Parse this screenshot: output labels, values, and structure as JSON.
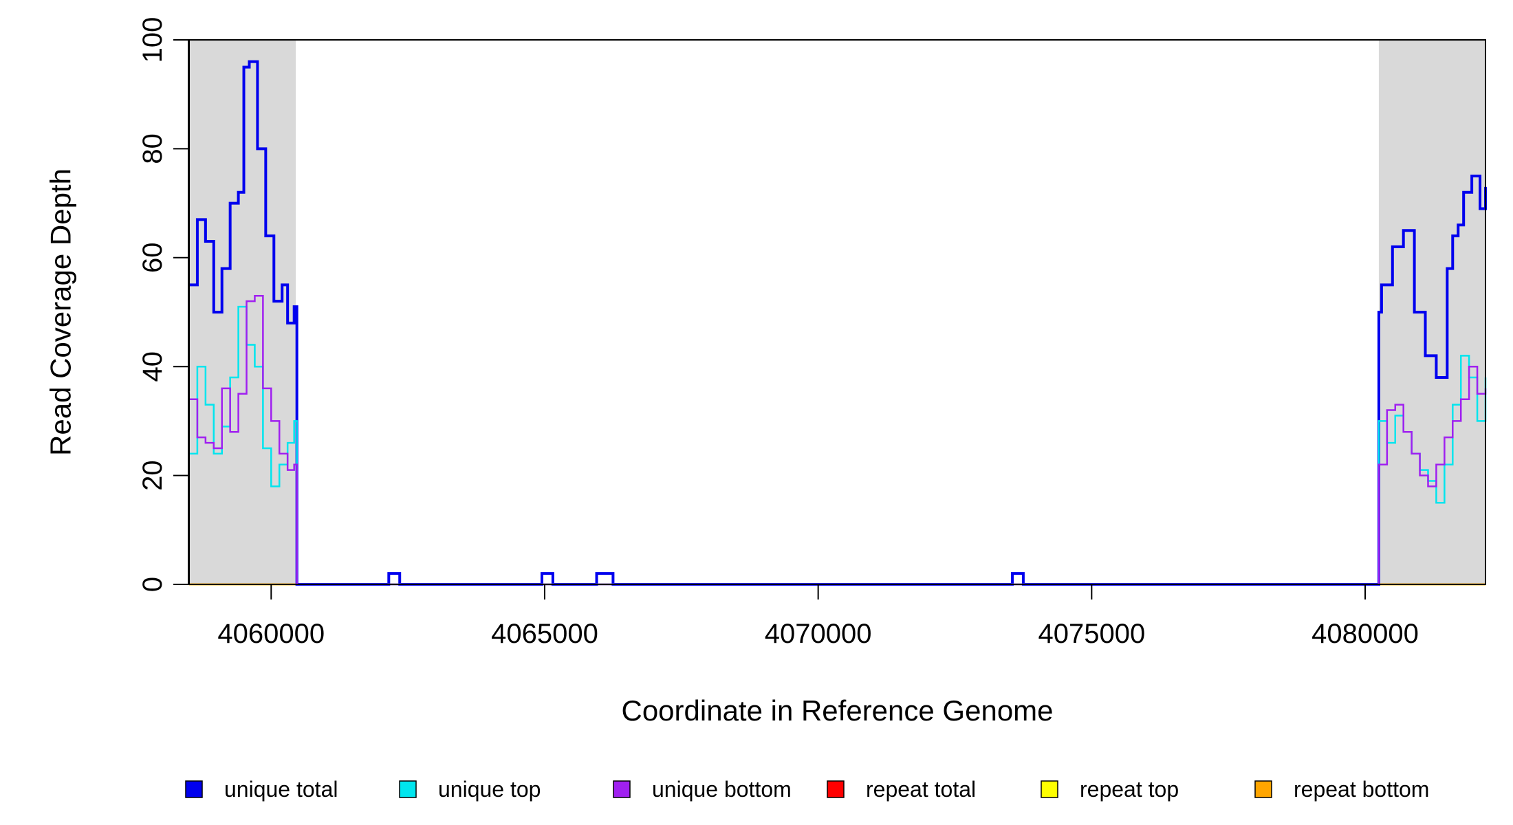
{
  "chart_data": {
    "type": "line",
    "xlabel": "Coordinate in Reference Genome",
    "ylabel": "Read Coverage Depth",
    "xlim": [
      4058500,
      4082200
    ],
    "ylim": [
      0,
      100
    ],
    "x_ticks": [
      4060000,
      4065000,
      4070000,
      4075000,
      4080000
    ],
    "y_ticks": [
      0,
      20,
      40,
      60,
      80,
      100
    ],
    "shaded_regions": [
      [
        4058500,
        4060450
      ],
      [
        4080250,
        4082200
      ]
    ],
    "shade_color": "#d9d9d9",
    "legend_position": "bottom",
    "series": [
      {
        "name": "unique total",
        "color": "#0000ee",
        "x": [
          4058500,
          4058650,
          4058800,
          4058950,
          4059100,
          4059250,
          4059400,
          4059500,
          4059600,
          4059750,
          4059900,
          4060050,
          4060200,
          4060300,
          4060420,
          4060470,
          4062100,
          4062150,
          4062300,
          4062350,
          4064900,
          4064950,
          4065100,
          4065150,
          4065900,
          4065950,
          4066200,
          4066250,
          4073500,
          4073550,
          4073700,
          4073750,
          4080200,
          4080250,
          4080300,
          4080500,
          4080700,
          4080900,
          4081100,
          4081300,
          4081500,
          4081600,
          4081700,
          4081800,
          4081950,
          4082100,
          4082200
        ],
        "y": [
          55,
          67,
          63,
          50,
          58,
          70,
          72,
          95,
          96,
          80,
          64,
          52,
          55,
          48,
          51,
          0,
          0,
          2,
          2,
          0,
          0,
          2,
          2,
          0,
          0,
          2,
          2,
          0,
          0,
          2,
          2,
          0,
          0,
          50,
          55,
          62,
          65,
          50,
          42,
          38,
          58,
          64,
          66,
          72,
          75,
          69,
          73
        ]
      },
      {
        "name": "unique top",
        "color": "#00e5ee",
        "x": [
          4058500,
          4058650,
          4058800,
          4058950,
          4059100,
          4059250,
          4059400,
          4059550,
          4059700,
          4059850,
          4060000,
          4060150,
          4060300,
          4060420,
          4060470,
          4080200,
          4080250,
          4080400,
          4080550,
          4080700,
          4080850,
          4081000,
          4081150,
          4081300,
          4081450,
          4081600,
          4081750,
          4081900,
          4082050,
          4082200
        ],
        "y": [
          24,
          40,
          33,
          24,
          29,
          38,
          51,
          44,
          40,
          25,
          18,
          22,
          26,
          30,
          0,
          0,
          30,
          26,
          31,
          28,
          24,
          21,
          19,
          15,
          22,
          33,
          42,
          38,
          30,
          38
        ]
      },
      {
        "name": "unique bottom",
        "color": "#a020f0",
        "x": [
          4058500,
          4058650,
          4058800,
          4058950,
          4059100,
          4059250,
          4059400,
          4059550,
          4059700,
          4059850,
          4060000,
          4060150,
          4060300,
          4060420,
          4060470,
          4080200,
          4080250,
          4080400,
          4080550,
          4080700,
          4080850,
          4081000,
          4081150,
          4081300,
          4081450,
          4081600,
          4081750,
          4081900,
          4082050,
          4082200
        ],
        "y": [
          34,
          27,
          26,
          25,
          36,
          28,
          35,
          52,
          53,
          36,
          30,
          24,
          21,
          22,
          0,
          0,
          22,
          32,
          33,
          28,
          24,
          20,
          18,
          22,
          27,
          30,
          34,
          40,
          35,
          36
        ]
      },
      {
        "name": "repeat total",
        "color": "#ff0000",
        "x": [
          4058500,
          4082200
        ],
        "y": [
          0,
          0
        ]
      },
      {
        "name": "repeat top",
        "color": "#ffff00",
        "x": [
          4058500,
          4082200
        ],
        "y": [
          0,
          0
        ]
      },
      {
        "name": "repeat bottom",
        "color": "#ffa500",
        "x": [
          4058500,
          4082200
        ],
        "y": [
          0,
          0
        ]
      }
    ]
  }
}
